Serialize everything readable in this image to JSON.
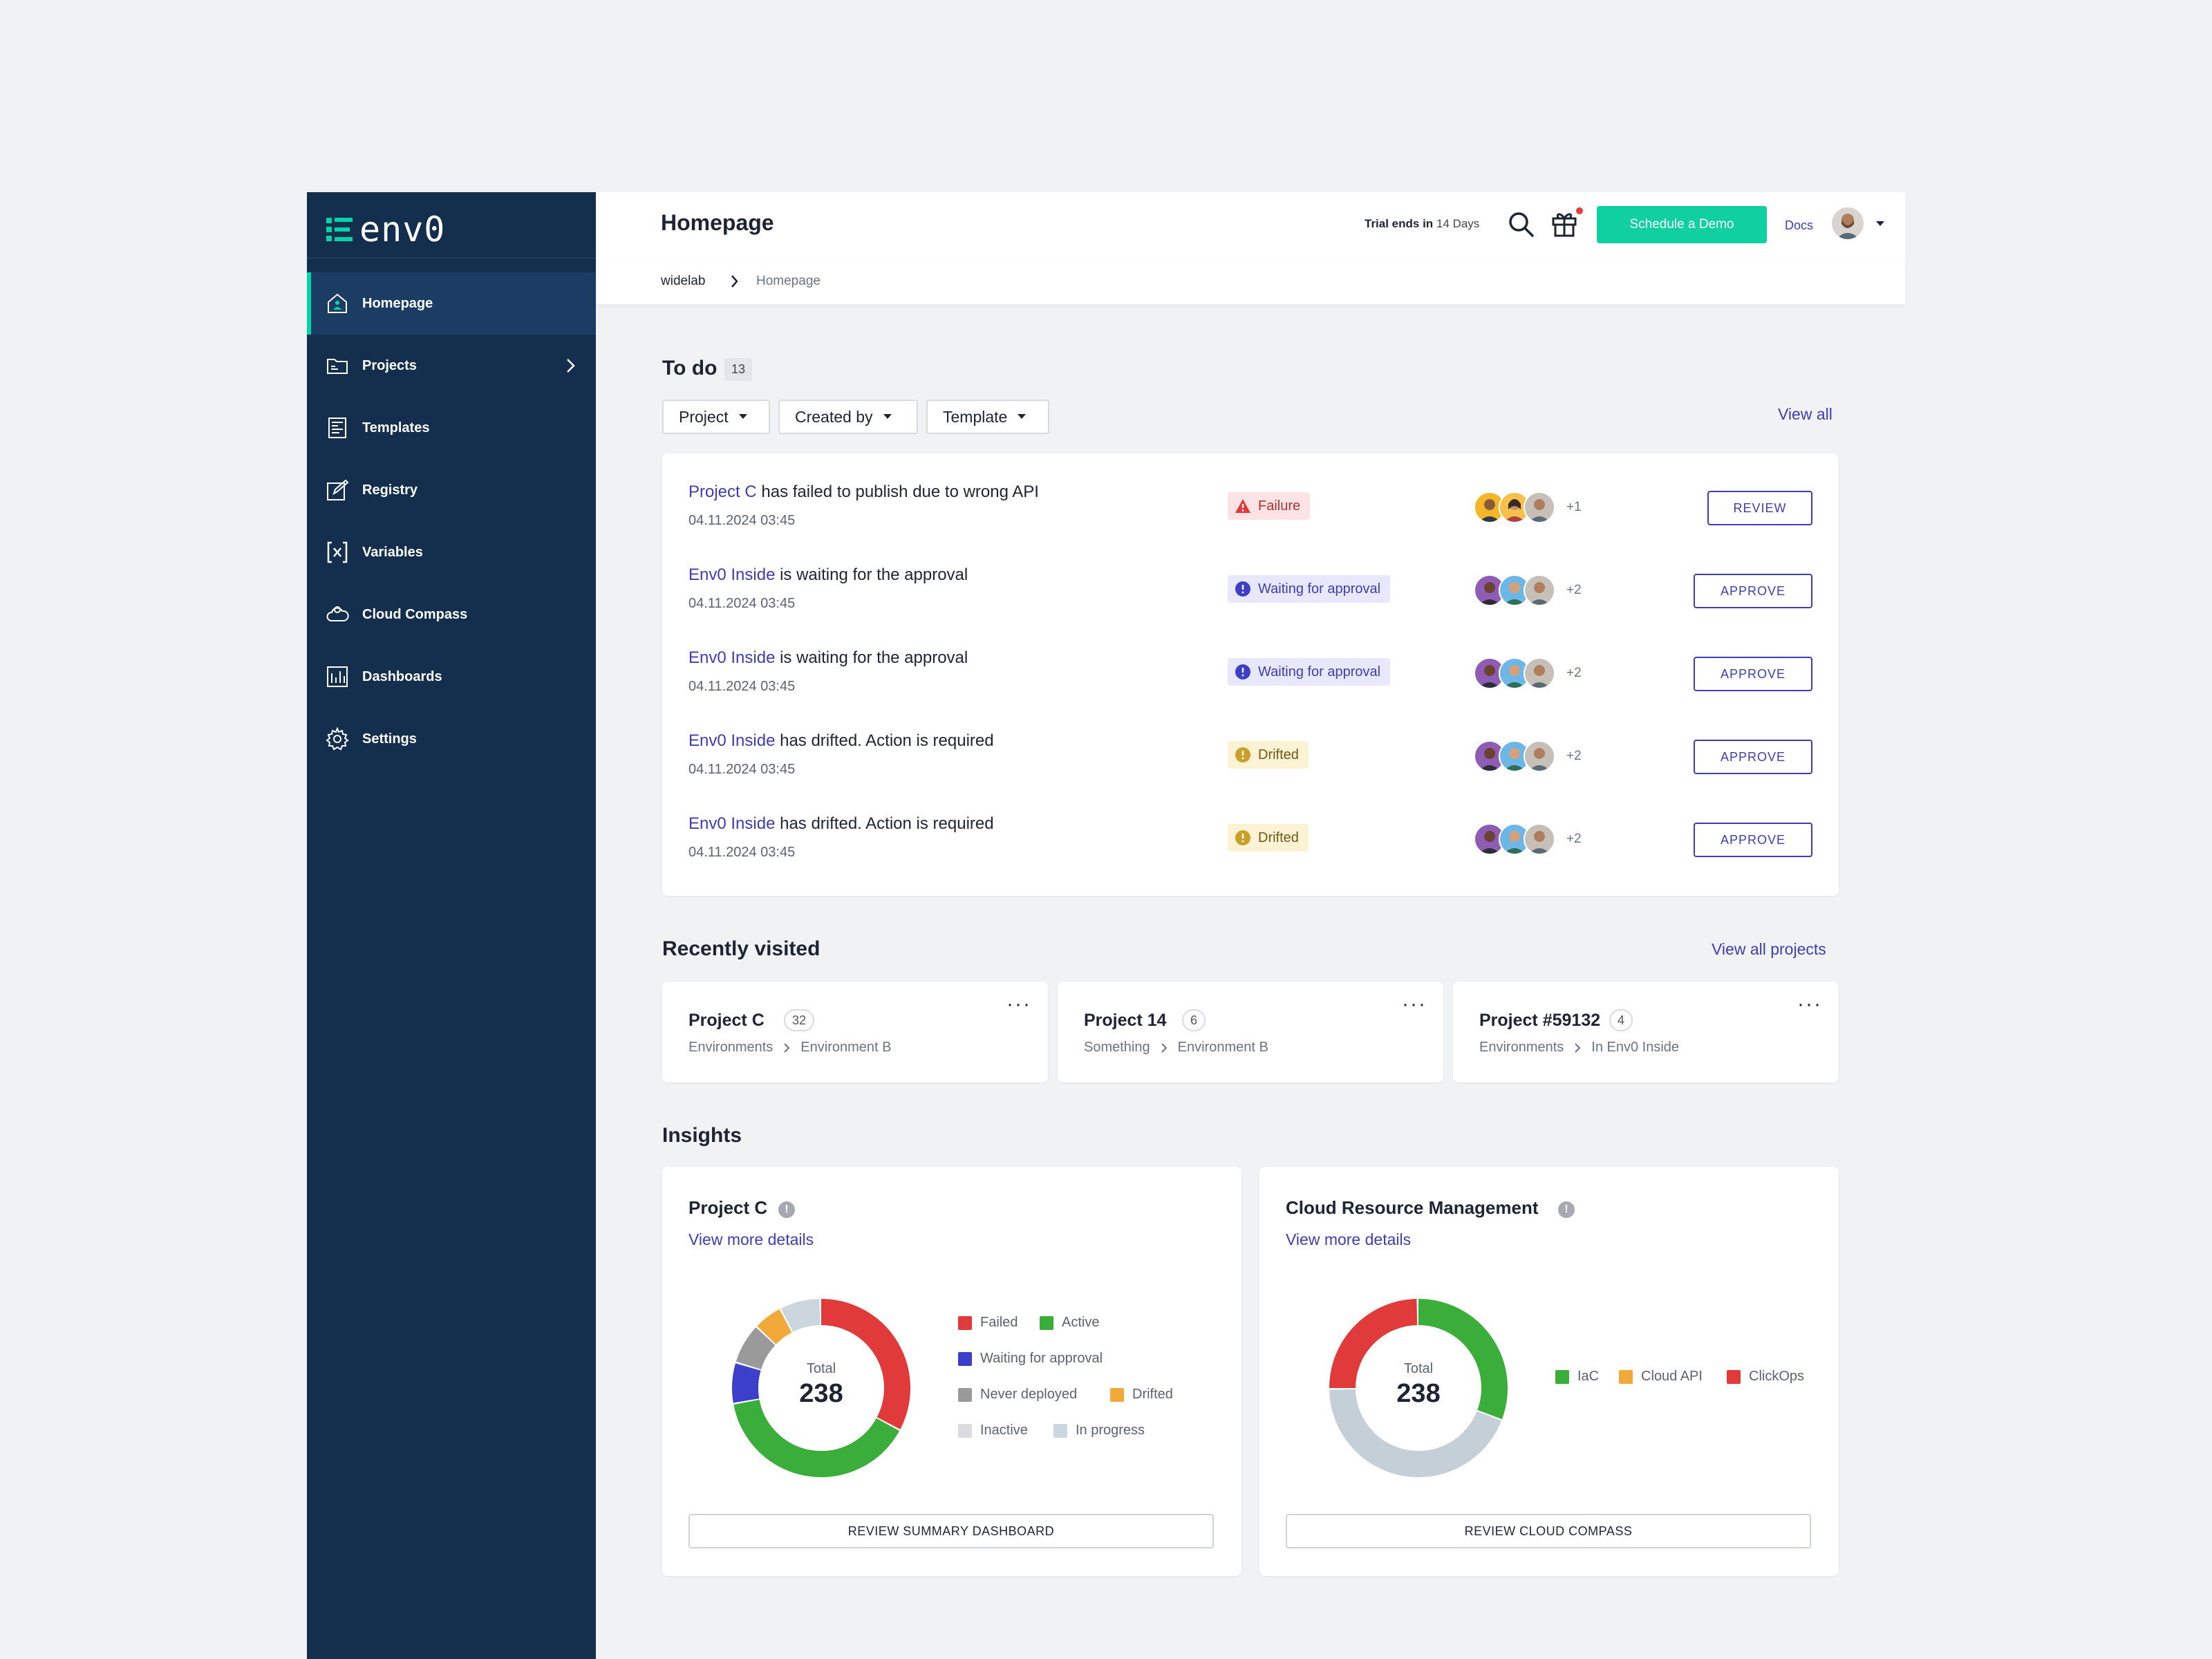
{
  "brand": {
    "name": "env0"
  },
  "sidebar": {
    "items": [
      {
        "label": "Homepage",
        "icon": "home-icon"
      },
      {
        "label": "Projects",
        "icon": "folder-icon"
      },
      {
        "label": "Templates",
        "icon": "template-icon"
      },
      {
        "label": "Registry",
        "icon": "edit-icon"
      },
      {
        "label": "Variables",
        "icon": "variables-icon"
      },
      {
        "label": "Cloud Compass",
        "icon": "cloud-compass-icon"
      },
      {
        "label": "Dashboards",
        "icon": "dashboards-icon"
      },
      {
        "label": "Settings",
        "icon": "gear-icon"
      }
    ]
  },
  "header": {
    "title": "Homepage",
    "trial_prefix": "Trial ends in",
    "trial_value": "14 Days",
    "demo_label": "Schedule a Demo",
    "docs_label": "Docs"
  },
  "breadcrumb": {
    "org": "widelab",
    "page": "Homepage"
  },
  "todo": {
    "title": "To do",
    "count": "13",
    "filters": [
      "Project",
      "Created by",
      "Template"
    ],
    "view_all": "View all",
    "rows": [
      {
        "link": "Project C",
        "text": "has failed to publish due to wrong API",
        "time": "04.11.2024 03:45",
        "status": "Failure",
        "extra": "+1",
        "action": "REVIEW"
      },
      {
        "link": "Env0 Inside",
        "text": "is waiting for the approval",
        "time": "04.11.2024 03:45",
        "status": "Waiting for approval",
        "extra": "+2",
        "action": "APPROVE"
      },
      {
        "link": "Env0 Inside",
        "text": "is waiting for the approval",
        "time": "04.11.2024 03:45",
        "status": "Waiting for approval",
        "extra": "+2",
        "action": "APPROVE"
      },
      {
        "link": "Env0 Inside",
        "text": "has drifted. Action is required",
        "time": "04.11.2024 03:45",
        "status": "Drifted",
        "extra": "+2",
        "action": "APPROVE"
      },
      {
        "link": "Env0 Inside",
        "text": "has drifted. Action is required",
        "time": "04.11.2024 03:45",
        "status": "Drifted",
        "extra": "+2",
        "action": "APPROVE"
      }
    ]
  },
  "recent": {
    "title": "Recently visited",
    "view_all": "View all projects",
    "items": [
      {
        "name": "Project C",
        "count": "32",
        "path1": "Environments",
        "path2": "Environment B"
      },
      {
        "name": "Project 14",
        "count": "6",
        "path1": "Something",
        "path2": "Environment B"
      },
      {
        "name": "Project #59132",
        "count": "4",
        "path1": "Environments",
        "path2": "In Env0 Inside"
      }
    ]
  },
  "insights": {
    "title": "Insights",
    "cards": [
      {
        "title": "Project C",
        "link": "View more details",
        "total_label": "Total",
        "total": "238",
        "legend": [
          {
            "label": "Failed",
            "color": "#e03a3a"
          },
          {
            "label": "Active",
            "color": "#3aad3a"
          },
          {
            "label": "Waiting for approval",
            "color": "#3c3fc9"
          },
          {
            "label": "Never deployed",
            "color": "#9a9a9a"
          },
          {
            "label": "Drifted",
            "color": "#f2a93b"
          },
          {
            "label": "Inactive",
            "color": "#d9dde2"
          },
          {
            "label": "In progress",
            "color": "#ccd6de"
          }
        ],
        "segments": [
          {
            "label": "Failed",
            "value": 31,
            "color": "#e03a3a"
          },
          {
            "label": "Active",
            "value": 37,
            "color": "#3aad3a"
          },
          {
            "label": "Waiting for approval",
            "value": 7,
            "color": "#3c3fc9"
          },
          {
            "label": "Never deployed",
            "value": 7,
            "color": "#9a9a9a"
          },
          {
            "label": "Drifted",
            "value": 5,
            "color": "#f2a93b"
          },
          {
            "label": "In progress",
            "value": 7,
            "color": "#ccd6de"
          }
        ],
        "button": "REVIEW SUMMARY DASHBOARD"
      },
      {
        "title": "Cloud Resource Management",
        "link": "View more details",
        "total_label": "Total",
        "total": "238",
        "legend": [
          {
            "label": "IaC",
            "color": "#3aad3a"
          },
          {
            "label": "Cloud API",
            "color": "#f2a93b"
          },
          {
            "label": "ClickOps",
            "color": "#e03a3a"
          }
        ],
        "segments": [
          {
            "label": "IaC",
            "value": 31,
            "color": "#3aad3a"
          },
          {
            "label": "Cloud API",
            "value": 44,
            "color": "#c4cfd8"
          },
          {
            "label": "ClickOps",
            "value": 25,
            "color": "#e03a3a"
          }
        ],
        "button": "REVIEW CLOUD COMPASS"
      }
    ]
  }
}
